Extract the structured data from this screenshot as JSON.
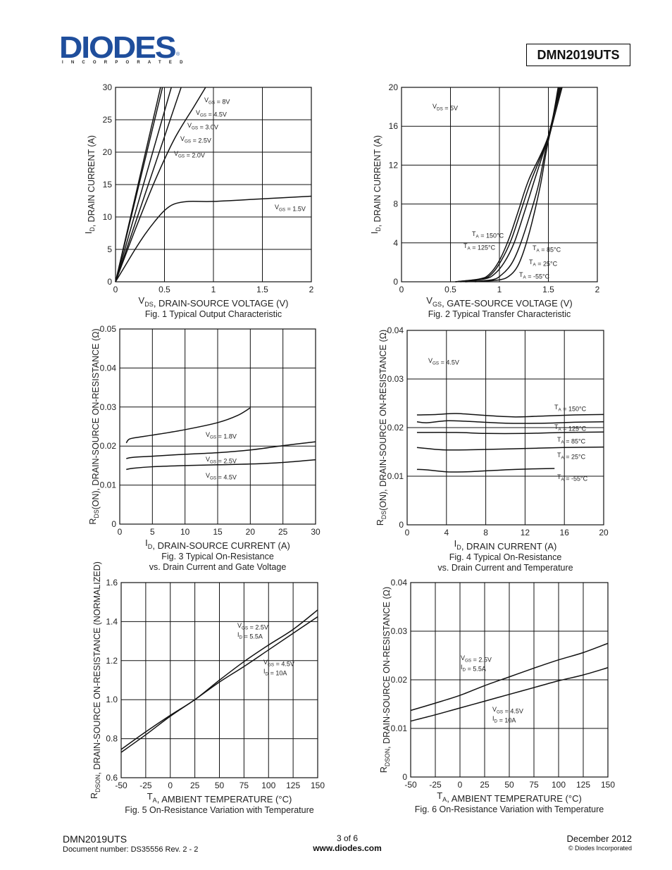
{
  "header": {
    "logo_text": "DIODES",
    "logo_subtext": "INCORPORATED",
    "logo_registered": "®",
    "part_number": "DMN2019UTS",
    "brand_color": "#1f4e9c"
  },
  "footer": {
    "part_number": "DMN2019UTS",
    "document_number": "Document number: DS35556  Rev. 2 - 2",
    "page": "3 of 6",
    "website": "www.diodes.com",
    "date": "December 2012",
    "copyright": "© Diodes Incorporated"
  },
  "chart_data": [
    {
      "id": "fig1",
      "type": "line",
      "title": "Fig. 1 Typical Output Characteristic",
      "xlabel": "VDS, DRAIN-SOURCE VOLTAGE (V)",
      "ylabel": "ID, DRAIN CURRENT (A)",
      "xlim": [
        0,
        2
      ],
      "ylim": [
        0,
        30
      ],
      "xticks": [
        "0",
        "0.5",
        "1",
        "1.5",
        "2"
      ],
      "yticks": [
        "0",
        "5",
        "10",
        "15",
        "20",
        "25",
        "30"
      ],
      "grid": true,
      "series": [
        {
          "name": "VGS = 8V",
          "x": [
            0,
            0.46
          ],
          "y": [
            0,
            30
          ]
        },
        {
          "name": "VGS = 4.5V",
          "x": [
            0,
            0.48
          ],
          "y": [
            0,
            30
          ]
        },
        {
          "name": "VGS = 3.0V",
          "x": [
            0,
            0.57
          ],
          "y": [
            0,
            30
          ]
        },
        {
          "name": "VGS = 2.5V",
          "x": [
            0,
            0.67
          ],
          "y": [
            0,
            30
          ]
        },
        {
          "name": "VGS = 2.0V",
          "x": [
            0,
            0.2,
            0.4,
            0.6,
            0.8,
            0.92
          ],
          "y": [
            0,
            8,
            15.5,
            22,
            27,
            30
          ]
        },
        {
          "name": "VGS = 1.5V",
          "x": [
            0,
            0.1,
            0.2,
            0.3,
            0.4,
            0.5,
            0.6,
            0.75,
            1.0,
            1.5,
            2.0
          ],
          "y": [
            0,
            2.5,
            5,
            7.3,
            9.3,
            11,
            12,
            12.4,
            12.4,
            12.8,
            13.2
          ]
        }
      ]
    },
    {
      "id": "fig2",
      "type": "line",
      "title": "Fig. 2  Typical Transfer Characteristic",
      "xlabel": "VGS, GATE-SOURCE VOLTAGE (V)",
      "ylabel": "ID, DRAIN CURRENT (A)",
      "xlim": [
        0,
        2
      ],
      "ylim": [
        0,
        20
      ],
      "xticks": [
        "0",
        "0.5",
        "1",
        "1.5",
        "2"
      ],
      "yticks": [
        "0",
        "4",
        "8",
        "12",
        "16",
        "20"
      ],
      "grid": true,
      "annotation": "VDS = 5V",
      "series": [
        {
          "name": "TA = 150°C",
          "x": [
            0.55,
            0.8,
            0.9,
            1.0,
            1.1,
            1.2,
            1.3,
            1.5,
            1.6
          ],
          "y": [
            0,
            0.3,
            0.8,
            2.2,
            4.5,
            7.5,
            10.5,
            15,
            20
          ]
        },
        {
          "name": "TA = 125°C",
          "x": [
            0.55,
            0.82,
            0.92,
            1.02,
            1.12,
            1.22,
            1.32,
            1.5,
            1.61
          ],
          "y": [
            0,
            0.3,
            0.8,
            2.2,
            4.3,
            7.3,
            10.3,
            15,
            20
          ]
        },
        {
          "name": "TA = 85°C",
          "x": [
            0.6,
            0.85,
            0.95,
            1.05,
            1.15,
            1.25,
            1.35,
            1.5,
            1.62
          ],
          "y": [
            0,
            0.3,
            0.8,
            2.0,
            4.0,
            7.0,
            10.2,
            15,
            20
          ]
        },
        {
          "name": "TA = 25°C",
          "x": [
            0.65,
            0.92,
            1.02,
            1.12,
            1.2,
            1.3,
            1.4,
            1.5,
            1.63
          ],
          "y": [
            0,
            0.2,
            0.7,
            1.8,
            3.5,
            6.5,
            10,
            15,
            20
          ]
        },
        {
          "name": "TA = -55°C",
          "x": [
            0.75,
            1.0,
            1.1,
            1.18,
            1.25,
            1.33,
            1.42,
            1.5,
            1.64
          ],
          "y": [
            0,
            0.2,
            0.6,
            1.5,
            3.2,
            6.0,
            10,
            14.5,
            20
          ]
        }
      ]
    },
    {
      "id": "fig3",
      "type": "line",
      "title": "Fig. 3  Typical On-Resistance vs. Drain Current and Gate Voltage",
      "title_lines": [
        "Fig. 3  Typical On-Resistance",
        "vs. Drain Current and Gate Voltage"
      ],
      "xlabel": "ID, DRAIN-SOURCE CURRENT (A)",
      "ylabel": "RDS(ON), DRAIN-SOURCE ON-RESISTANCE (Ω)",
      "xlim": [
        0,
        30
      ],
      "ylim": [
        0,
        0.05
      ],
      "xticks": [
        "0",
        "5",
        "10",
        "15",
        "20",
        "25",
        "30"
      ],
      "yticks": [
        "0",
        "0.01",
        "0.02",
        "0.03",
        "0.04",
        "0.05"
      ],
      "grid": true,
      "series": [
        {
          "name": "VGS = 1.8V",
          "x": [
            1,
            1.5,
            3,
            5,
            10,
            15,
            18,
            20
          ],
          "y": [
            0.0208,
            0.0218,
            0.0223,
            0.0228,
            0.0242,
            0.026,
            0.0278,
            0.0298
          ]
        },
        {
          "name": "VGS = 2.5V",
          "x": [
            1,
            2,
            5,
            10,
            15,
            20,
            25,
            30
          ],
          "y": [
            0.0168,
            0.0171,
            0.0174,
            0.0179,
            0.0183,
            0.019,
            0.0201,
            0.0211
          ]
        },
        {
          "name": "VGS = 4.5V",
          "x": [
            1,
            2,
            5,
            10,
            15,
            20,
            25,
            30
          ],
          "y": [
            0.014,
            0.0143,
            0.0147,
            0.015,
            0.0152,
            0.0154,
            0.0158,
            0.0165
          ]
        }
      ]
    },
    {
      "id": "fig4",
      "type": "line",
      "title": "Fig. 4 Typical On-Resistance vs. Drain Current and Temperature",
      "title_lines": [
        "Fig. 4 Typical On-Resistance",
        "vs. Drain Current and Temperature"
      ],
      "xlabel": "ID, DRAIN CURRENT (A)",
      "ylabel": "RDS(ON), DRAIN-SOURCE ON-RESISTANCE (Ω)",
      "xlim": [
        0,
        20
      ],
      "ylim": [
        0,
        0.04
      ],
      "xticks": [
        "0",
        "4",
        "8",
        "12",
        "16",
        "20"
      ],
      "yticks": [
        "0",
        "0.01",
        "0.02",
        "0.03",
        "0.04"
      ],
      "grid": true,
      "annotation": "VGS = 4.5V",
      "series": [
        {
          "name": "TA = 150°C",
          "x": [
            1,
            3,
            5,
            8,
            11,
            14,
            17,
            20
          ],
          "y": [
            0.0226,
            0.0227,
            0.0229,
            0.0225,
            0.0222,
            0.0224,
            0.0226,
            0.0227
          ]
        },
        {
          "name": "TA = 125°C",
          "x": [
            1,
            2,
            4,
            6,
            10,
            14,
            17,
            20
          ],
          "y": [
            0.0212,
            0.021,
            0.0214,
            0.0213,
            0.0209,
            0.0209,
            0.0211,
            0.0212
          ]
        },
        {
          "name": "TA = 85°C",
          "x": [
            1,
            5,
            8,
            12,
            16,
            20
          ],
          "y": [
            0.019,
            0.019,
            0.0188,
            0.0188,
            0.019,
            0.0191
          ]
        },
        {
          "name": "TA = 25°C",
          "x": [
            1,
            2,
            4,
            8,
            12,
            16,
            20
          ],
          "y": [
            0.0159,
            0.0157,
            0.0154,
            0.0155,
            0.0157,
            0.0159,
            0.016
          ]
        },
        {
          "name": "TA = -55°C",
          "x": [
            1,
            2,
            4,
            6,
            8,
            11,
            15
          ],
          "y": [
            0.0114,
            0.0113,
            0.0109,
            0.0109,
            0.0111,
            0.0114,
            0.0116
          ]
        }
      ]
    },
    {
      "id": "fig5",
      "type": "line",
      "title": "Fig. 5 On-Resistance Variation with Temperature",
      "xlabel": "TA, AMBIENT TEMPERATURE (°C)",
      "ylabel": "RDSON, DRAIN-SOURCE ON-RESISTANCE (NORMALIZED)",
      "xlim": [
        -50,
        150
      ],
      "ylim": [
        0.6,
        1.6
      ],
      "xticks": [
        "-50",
        "-25",
        "0",
        "25",
        "50",
        "75",
        "100",
        "125",
        "150"
      ],
      "yticks": [
        "0.6",
        "0.8",
        "1.0",
        "1.2",
        "1.4",
        "1.6"
      ],
      "grid": true,
      "series": [
        {
          "name": "VGS = 2.5V, ID = 5.5A",
          "x": [
            -50,
            -25,
            0,
            25,
            50,
            75,
            100,
            125,
            150
          ],
          "y": [
            0.745,
            0.835,
            0.92,
            1.0,
            1.1,
            1.195,
            1.28,
            1.36,
            1.46
          ]
        },
        {
          "name": "VGS = 4.5V, ID = 10A",
          "x": [
            -50,
            -25,
            0,
            25,
            50,
            75,
            100,
            125,
            150
          ],
          "y": [
            0.73,
            0.82,
            0.915,
            1.0,
            1.09,
            1.17,
            1.255,
            1.34,
            1.425
          ]
        }
      ]
    },
    {
      "id": "fig6",
      "type": "line",
      "title": "Fig. 6 On-Resistance Variation with Temperature",
      "xlabel": "TA, AMBIENT TEMPERATURE (°C)",
      "ylabel": "RDSON, DRAIN-SOURCE ON-RESISTANCE (Ω)",
      "xlim": [
        -50,
        150
      ],
      "ylim": [
        0,
        0.04
      ],
      "xticks": [
        "-50",
        "-25",
        "0",
        "25",
        "50",
        "75",
        "100",
        "125",
        "150"
      ],
      "yticks": [
        "0",
        "0.01",
        "0.02",
        "0.03",
        "0.04"
      ],
      "grid": true,
      "series": [
        {
          "name": "VGS = 2.5V, ID = 5.5A",
          "x": [
            -50,
            -25,
            0,
            25,
            50,
            75,
            100,
            125,
            150
          ],
          "y": [
            0.0137,
            0.0152,
            0.0168,
            0.0188,
            0.0206,
            0.0224,
            0.0241,
            0.0256,
            0.0275
          ]
        },
        {
          "name": "VGS = 4.5V, ID = 10A",
          "x": [
            -50,
            -25,
            0,
            25,
            50,
            75,
            100,
            125,
            150
          ],
          "y": [
            0.0115,
            0.0128,
            0.0142,
            0.0156,
            0.017,
            0.0184,
            0.0198,
            0.021,
            0.0225
          ]
        }
      ]
    }
  ]
}
